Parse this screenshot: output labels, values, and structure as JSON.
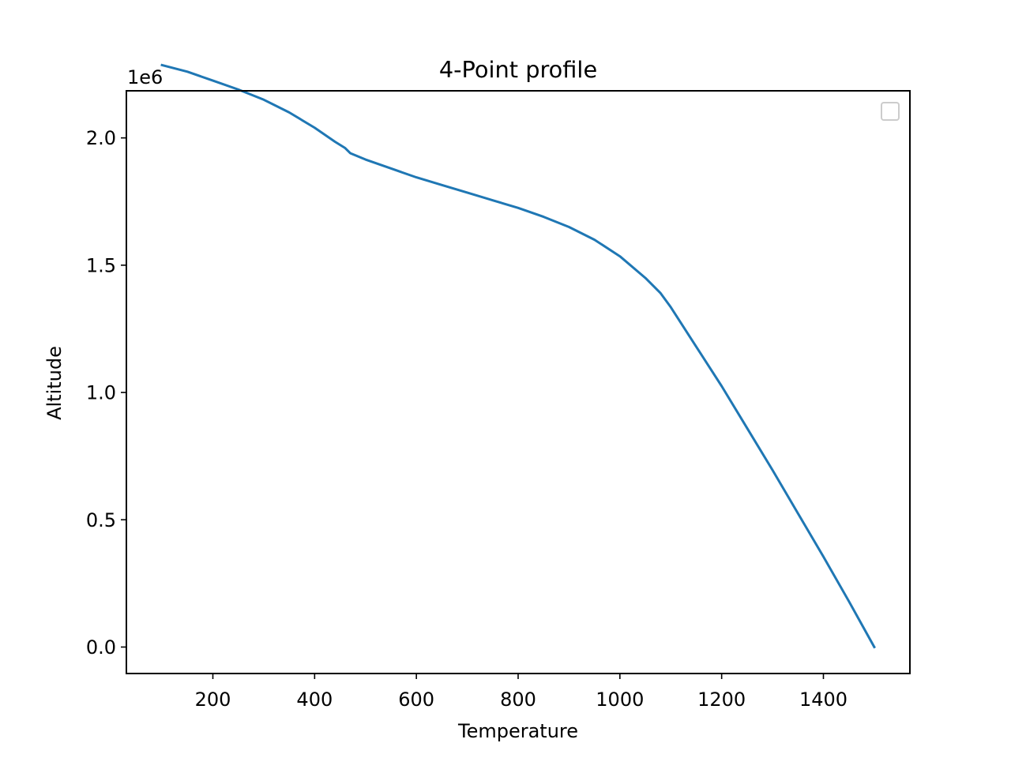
{
  "chart_data": {
    "type": "line",
    "title": "4-Point profile",
    "xlabel": "Temperature",
    "ylabel": "Altitude",
    "y_offset_text": "1e6",
    "y_scale": 1000000,
    "xlim": [
      30,
      1570
    ],
    "ylim": [
      -104000,
      2185000
    ],
    "x_ticks": [
      200,
      400,
      600,
      800,
      1000,
      1200,
      1400
    ],
    "x_tick_labels": [
      "200",
      "400",
      "600",
      "800",
      "1000",
      "1200",
      "1400"
    ],
    "y_ticks": [
      0,
      500000,
      1000000,
      1500000,
      2000000
    ],
    "y_tick_labels": [
      "0.0",
      "0.5",
      "1.0",
      "1.5",
      "2.0"
    ],
    "grid": false,
    "legend": {
      "placement": "top-right",
      "entries": []
    },
    "series": [
      {
        "color": "#1f77b4",
        "x": [
          1500,
          1450,
          1400,
          1350,
          1300,
          1250,
          1200,
          1150,
          1100,
          1080,
          1050,
          1000,
          950,
          900,
          850,
          800,
          750,
          700,
          650,
          600,
          550,
          500,
          470,
          460,
          440,
          400,
          350,
          300,
          250,
          200,
          150,
          100
        ],
        "y": [
          0,
          180000,
          355000,
          525000,
          695000,
          860000,
          1025000,
          1180000,
          1335000,
          1390000,
          1450000,
          1535000,
          1600000,
          1650000,
          1690000,
          1725000,
          1755000,
          1785000,
          1815000,
          1845000,
          1880000,
          1915000,
          1940000,
          1960000,
          1985000,
          2040000,
          2100000,
          2150000,
          2190000,
          2225000,
          2260000,
          2286000
        ]
      }
    ]
  }
}
